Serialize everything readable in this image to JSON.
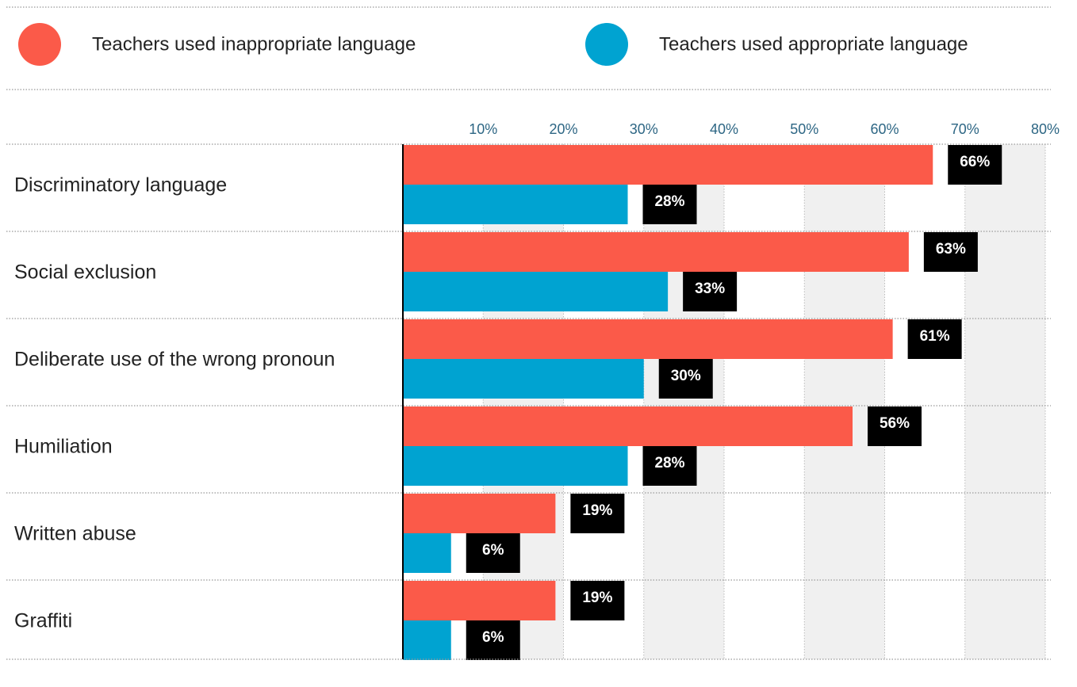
{
  "chart_data": {
    "type": "hbar",
    "categories": [
      "Discriminatory language",
      "Social exclusion",
      "Deliberate use of the wrong pronoun",
      "Humiliation",
      "Written abuse",
      "Graffiti"
    ],
    "series": [
      {
        "name": "Teachers used inappropriate language",
        "color": "#fb5a49",
        "values": [
          66,
          63,
          61,
          56,
          19,
          19
        ],
        "value_labels": [
          "66%",
          "63%",
          "61%",
          "56%",
          "19%",
          "19%"
        ]
      },
      {
        "name": "Teachers used appropriate language",
        "color": "#00a3d1",
        "values": [
          28,
          33,
          30,
          28,
          6,
          6
        ],
        "value_labels": [
          "28%",
          "33%",
          "30%",
          "28%",
          "6%",
          "6%"
        ]
      }
    ],
    "xlim": [
      0,
      80
    ],
    "xticks": [
      {
        "value": 10,
        "label": "10%"
      },
      {
        "value": 20,
        "label": "20%"
      },
      {
        "value": 30,
        "label": "30%"
      },
      {
        "value": 40,
        "label": "40%"
      },
      {
        "value": 50,
        "label": "50%"
      },
      {
        "value": 60,
        "label": "60%"
      },
      {
        "value": 70,
        "label": "70%"
      },
      {
        "value": 80,
        "label": "80%"
      }
    ],
    "grid": true,
    "legend": "top"
  }
}
